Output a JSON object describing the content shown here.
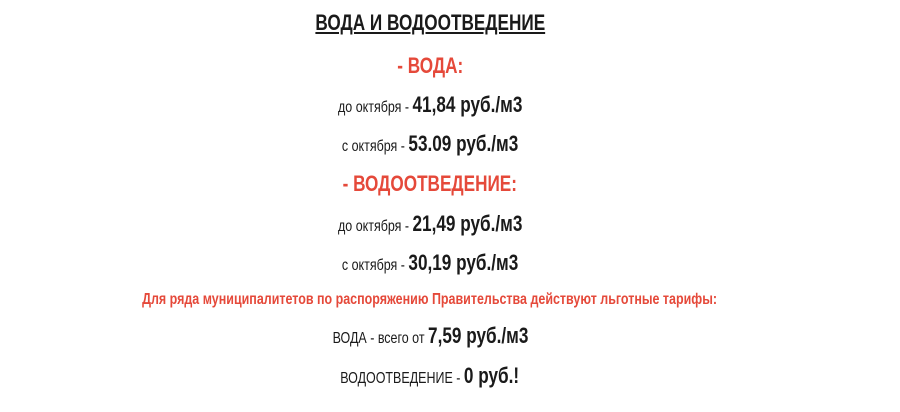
{
  "title": "ВОДА И ВОДООТВЕДЕНИЕ",
  "water": {
    "heading": "- ВОДА:",
    "before_label": "до октября - ",
    "before_value": "41,84 руб./м3",
    "after_label": "с октября - ",
    "after_value": "53.09 руб./м3"
  },
  "sewer": {
    "heading": "- ВОДООТВЕДЕНИЕ:",
    "before_label": "до октября - ",
    "before_value": "21,49 руб./м3",
    "after_label": "с октября - ",
    "after_value": "30,19 руб./м3"
  },
  "note": "Для ряда муниципалитетов по распоряжению Правительства действуют льготные тарифы:",
  "benefit_water": {
    "label": "ВОДА - всего от ",
    "value": "7,59 руб./м3"
  },
  "benefit_sewer": {
    "label": "ВОДООТВЕДЕНИЕ - ",
    "value": "0 руб.!"
  },
  "colors": {
    "accent": "#e5493a",
    "text": "#1a1a1a"
  }
}
